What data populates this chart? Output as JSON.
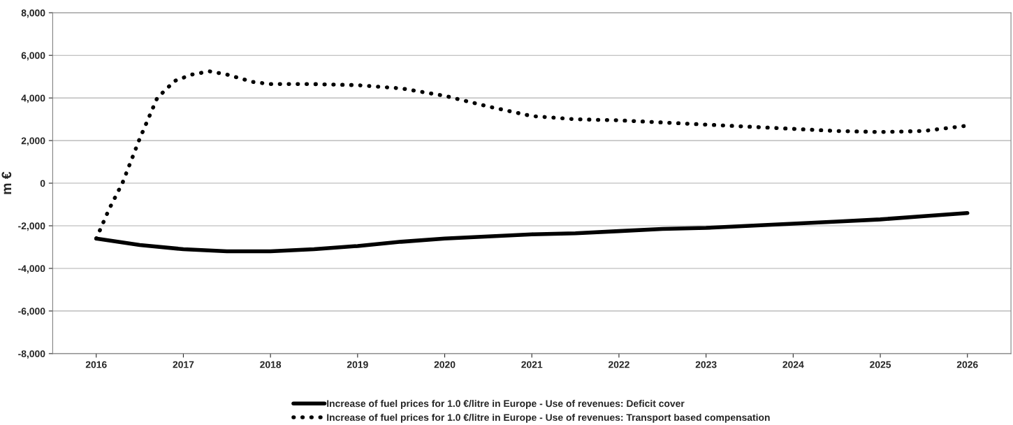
{
  "chart_data": {
    "type": "line",
    "ylabel": "m €",
    "ylim": [
      -8000,
      8000
    ],
    "yticks": [
      {
        "value": -8000,
        "label": "-8,000"
      },
      {
        "value": -6000,
        "label": "-6,000"
      },
      {
        "value": -4000,
        "label": "-4,000"
      },
      {
        "value": -2000,
        "label": "-2,000"
      },
      0,
      {
        "value": 2000,
        "label": "2,000"
      },
      {
        "value": 4000,
        "label": "4,000"
      },
      {
        "value": 6000,
        "label": "6,000"
      },
      {
        "value": 8000,
        "label": "8,000"
      }
    ],
    "xlim": [
      2015.5,
      2026.5
    ],
    "xticks": [
      2016,
      2017,
      2018,
      2019,
      2020,
      2021,
      2022,
      2023,
      2024,
      2025,
      2026
    ],
    "grid": "y",
    "legend": "bottom",
    "marker": "none",
    "series": [
      {
        "name": "Increase of fuel prices for 1.0 €/litre in Europe - Use of revenues: Deficit cover",
        "color": "#000000",
        "line_style": "solid",
        "x": [
          2016,
          2016.5,
          2017,
          2017.5,
          2018,
          2018.5,
          2019,
          2019.5,
          2020,
          2020.5,
          2021,
          2021.5,
          2022,
          2022.5,
          2023,
          2023.5,
          2024,
          2024.5,
          2025,
          2025.5,
          2026
        ],
        "values": [
          -2600,
          -2900,
          -3100,
          -3200,
          -3200,
          -3100,
          -2950,
          -2750,
          -2600,
          -2500,
          -2400,
          -2350,
          -2250,
          -2150,
          -2100,
          -2000,
          -1900,
          -1800,
          -1700,
          -1550,
          -1400
        ]
      },
      {
        "name": "Increase of fuel prices for 1.0 €/litre in Europe - Use of revenues: Transport based compensation",
        "color": "#000000",
        "line_style": "dotted",
        "x": [
          2016,
          2016.15,
          2016.3,
          2016.5,
          2016.7,
          2016.9,
          2017.1,
          2017.3,
          2017.5,
          2017.8,
          2018,
          2018.5,
          2019,
          2019.5,
          2020,
          2020.5,
          2021,
          2021.5,
          2022,
          2022.5,
          2023,
          2023.5,
          2024,
          2024.5,
          2025,
          2025.5,
          2026
        ],
        "values": [
          -2600,
          -1200,
          0,
          2100,
          4000,
          4800,
          5100,
          5250,
          5100,
          4750,
          4650,
          4650,
          4600,
          4450,
          4100,
          3600,
          3150,
          3000,
          2950,
          2850,
          2750,
          2650,
          2550,
          2450,
          2400,
          2450,
          2700
        ]
      }
    ]
  }
}
